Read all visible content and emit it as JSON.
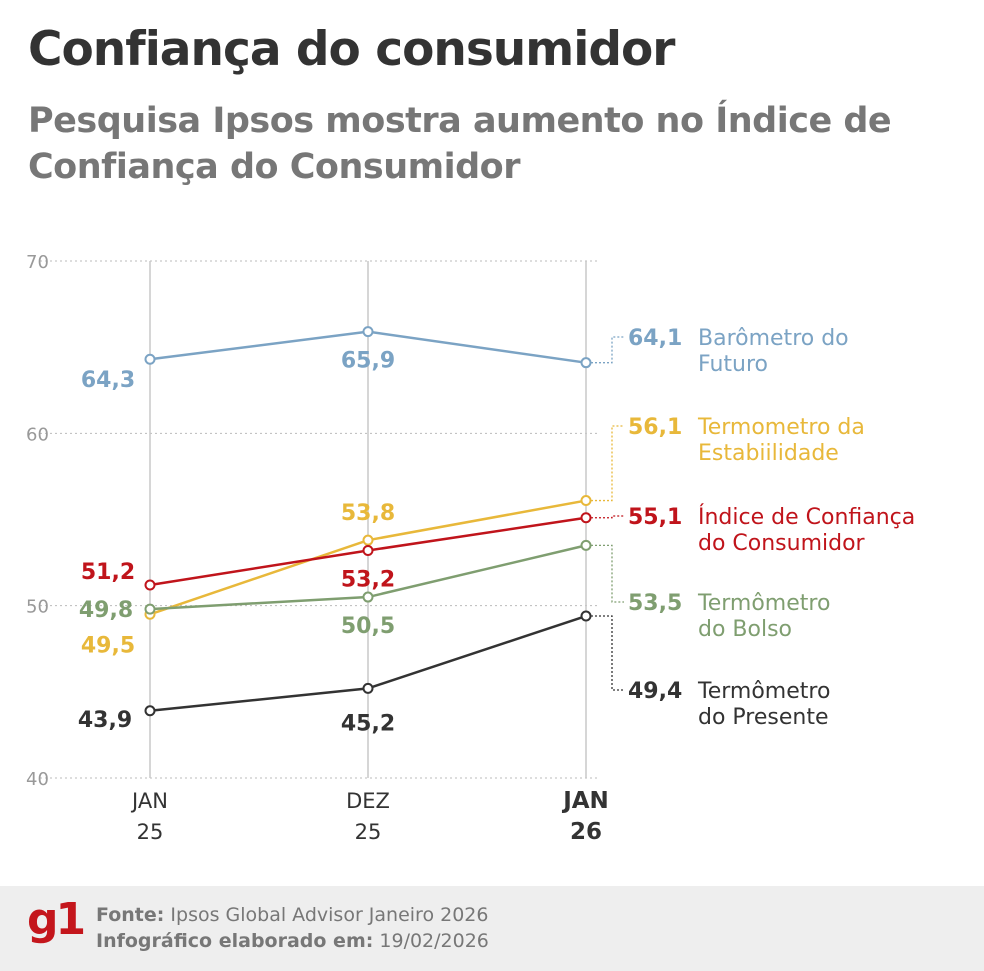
{
  "header": {
    "title": "Confiança do consumidor",
    "subtitle": "Pesquisa Ipsos mostra aumento no Índice de Confiança do Consumidor"
  },
  "chart_data": {
    "type": "line",
    "x": [
      "JAN 25",
      "DEZ 25",
      "JAN 26"
    ],
    "x_tick_labels": [
      [
        "JAN",
        "25"
      ],
      [
        "DEZ",
        "25"
      ],
      [
        "JAN",
        "26"
      ]
    ],
    "ylim": [
      40,
      70
    ],
    "y_ticks": [
      40,
      50,
      60,
      70
    ],
    "grid": true,
    "legend": "right, direct labels at line ends",
    "series": [
      {
        "name": "Barômetro do Futuro",
        "name_lines": [
          "Barômetro do",
          "Futuro"
        ],
        "color": "#7ba3c4",
        "values": [
          64.3,
          65.9,
          64.1
        ],
        "labels": [
          "64,3",
          "65,9",
          "64,1"
        ]
      },
      {
        "name": "Termometro da Estabiilidade",
        "name_lines": [
          "Termometro da",
          "Estabiilidade"
        ],
        "color": "#e8b83a",
        "values": [
          49.5,
          53.8,
          56.1
        ],
        "labels": [
          "49,5",
          "53,8",
          "56,1"
        ]
      },
      {
        "name": "Índice de Confiança do Consumidor",
        "name_lines": [
          "Índice de Confiança",
          "do Consumidor"
        ],
        "color": "#c0141b",
        "values": [
          51.2,
          53.2,
          55.1
        ],
        "labels": [
          "51,2",
          "53,2",
          "55,1"
        ]
      },
      {
        "name": "Termômetro do Bolso",
        "name_lines": [
          "Termômetro",
          "do Bolso"
        ],
        "color": "#7f9e70",
        "values": [
          49.8,
          50.5,
          53.5
        ],
        "labels": [
          "49,8",
          "50,5",
          "53,5"
        ]
      },
      {
        "name": "Termômetro do Presente",
        "name_lines": [
          "Termômetro",
          "do Presente"
        ],
        "color": "#333333",
        "values": [
          43.9,
          45.2,
          49.4
        ],
        "labels": [
          "43,9",
          "45,2",
          "49,4"
        ]
      }
    ]
  },
  "footer": {
    "logo": "g1",
    "source_label": "Fonte:",
    "source": "Ipsos Global Advisor Janeiro 2026",
    "date_label": "Infográfico elaborado em:",
    "date": "19/02/2026"
  }
}
